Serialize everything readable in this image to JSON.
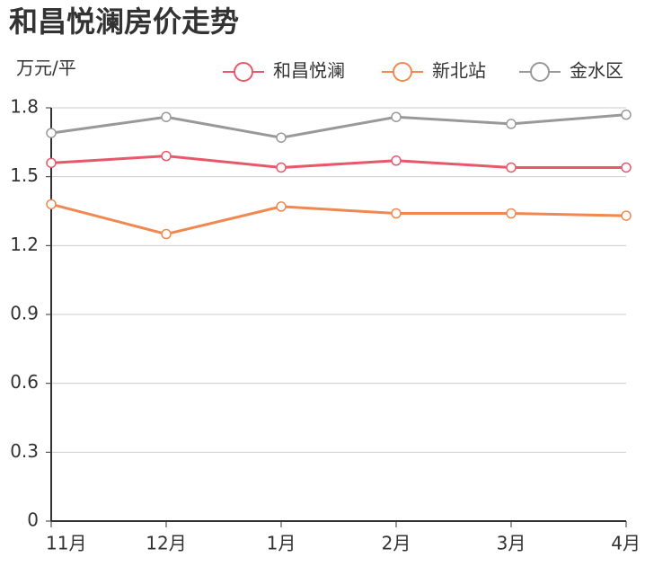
{
  "chart_data": {
    "type": "line",
    "title": "和昌悦澜房价走势",
    "y_label": "万元/平",
    "categories": [
      "11月",
      "12月",
      "1月",
      "2月",
      "3月",
      "4月"
    ],
    "series": [
      {
        "name": "和昌悦澜",
        "color": "#e8586b",
        "values": [
          1.56,
          1.59,
          1.54,
          1.57,
          1.54,
          1.54
        ]
      },
      {
        "name": "新北站",
        "color": "#f0884f",
        "values": [
          1.38,
          1.25,
          1.37,
          1.34,
          1.34,
          1.33
        ]
      },
      {
        "name": "金水区",
        "color": "#999999",
        "values": [
          1.69,
          1.76,
          1.67,
          1.76,
          1.73,
          1.77
        ]
      }
    ],
    "ylim": [
      0,
      1.8
    ],
    "yticks": [
      0,
      0.3,
      0.6,
      0.9,
      1.2,
      1.5,
      1.8
    ],
    "grid": true
  }
}
